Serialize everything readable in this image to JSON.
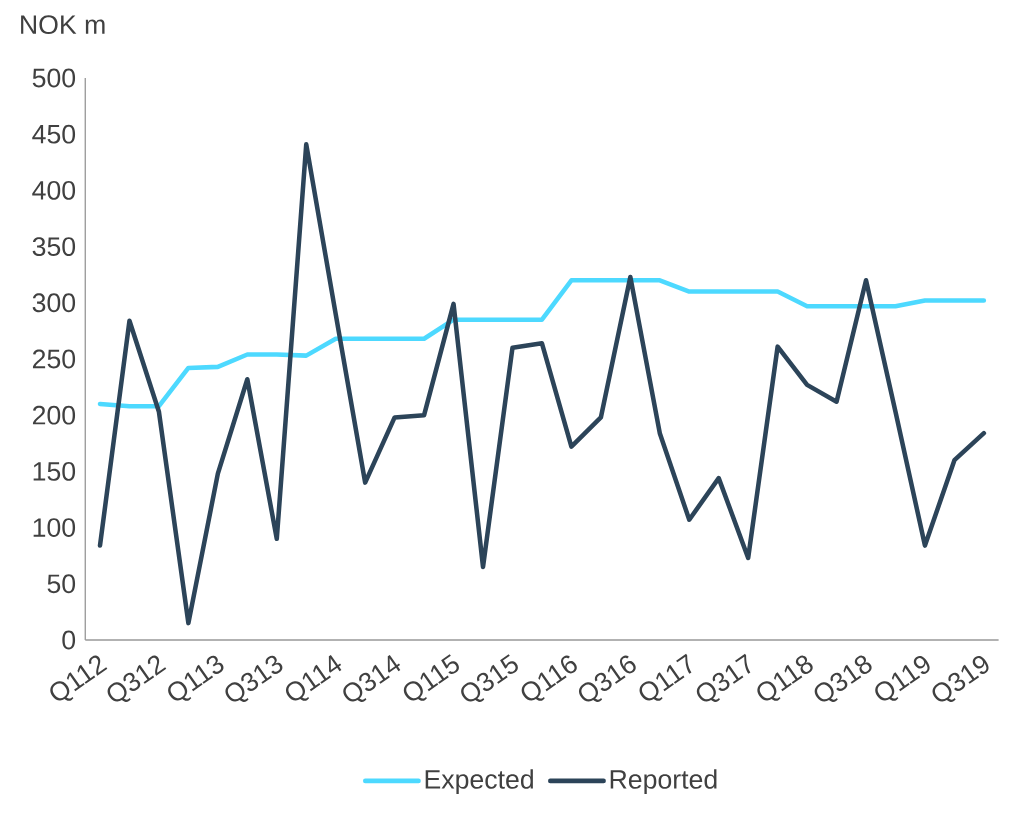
{
  "chart_data": {
    "type": "line",
    "ylabel": "NOK m",
    "categories": [
      "Q112",
      null,
      "Q312",
      null,
      "Q113",
      null,
      "Q313",
      null,
      "Q114",
      null,
      "Q314",
      null,
      "Q115",
      null,
      "Q315",
      null,
      "Q116",
      null,
      "Q316",
      null,
      "Q117",
      null,
      "Q317",
      null,
      "Q118",
      null,
      "Q318",
      null,
      "Q119",
      null,
      "Q319"
    ],
    "series": [
      {
        "name": "Expected",
        "color": "#4dd9ff",
        "values": [
          210,
          208,
          208,
          242,
          243,
          254,
          254,
          253,
          268,
          268,
          268,
          268,
          285,
          285,
          285,
          285,
          320,
          320,
          320,
          320,
          310,
          310,
          310,
          310,
          297,
          297,
          297,
          297,
          302,
          302,
          302
        ]
      },
      {
        "name": "Reported",
        "color": "#2c4459",
        "values": [
          84,
          284,
          203,
          15,
          148,
          232,
          90,
          441,
          290,
          140,
          198,
          200,
          299,
          65,
          260,
          264,
          172,
          198,
          323,
          184,
          107,
          144,
          73,
          261,
          227,
          212,
          320,
          203,
          84,
          160,
          184
        ]
      }
    ],
    "ylim": [
      0,
      500
    ],
    "yticks": [
      0,
      50,
      100,
      150,
      200,
      250,
      300,
      350,
      400,
      450,
      500
    ],
    "legend": "bottom"
  }
}
